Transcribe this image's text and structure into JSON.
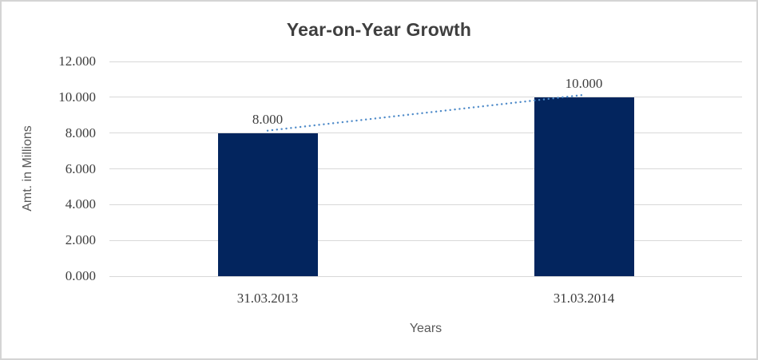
{
  "window": {
    "background_color": "#ffffff",
    "frame_border_color": "#d4d4d4"
  },
  "chart_data": {
    "type": "bar",
    "title": "Year-on-Year Growth",
    "xlabel": "Years",
    "ylabel": "Amt. in Millions",
    "categories": [
      "31.03.2013",
      "31.03.2014"
    ],
    "values": [
      8.0,
      10.0
    ],
    "data_labels": [
      "8.000",
      "10.000"
    ],
    "ylim": [
      0,
      12
    ],
    "ytick_values": [
      0,
      2,
      4,
      6,
      8,
      10,
      12
    ],
    "ytick_labels": [
      "0.000",
      "2.000",
      "4.000",
      "6.000",
      "8.000",
      "10.000",
      "12.000"
    ],
    "grid": true,
    "legend": "none",
    "trendline": {
      "style": "dotted",
      "color": "#4f8bc9",
      "connects_values": [
        8.0,
        10.0
      ]
    },
    "colors": {
      "bar": "#03255e",
      "gridline": "#d8d8d8",
      "title_text": "#3f3f3f",
      "tick_text": "#3d3d3d",
      "axis_title_text": "#595959"
    }
  }
}
